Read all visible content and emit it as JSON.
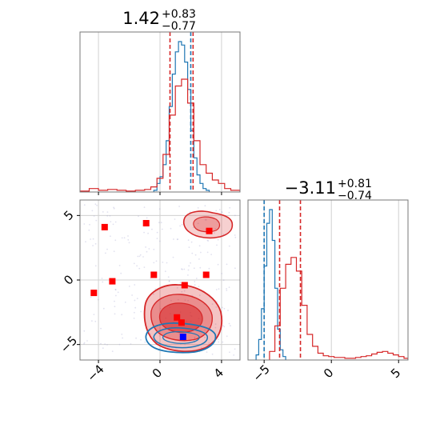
{
  "chart_data": {
    "type": "corner",
    "colors": {
      "blue": "#1f77b4",
      "red": "#d62728",
      "grid": "#d0d0d0"
    },
    "panels": [
      {
        "id": "hist-x",
        "type": "histogram",
        "title": {
          "main": "1.42",
          "sup": "+0.83",
          "sub": "−0.77"
        },
        "xlim": [
          -5.2,
          5.2
        ],
        "grid_x": [
          -4,
          0,
          4
        ],
        "series": [
          {
            "color": "blue",
            "edges": [
              -0.4,
              -0.2,
              0,
              0.2,
              0.4,
              0.6,
              0.8,
              1.0,
              1.2,
              1.4,
              1.6,
              1.8,
              2.0,
              2.2,
              2.4,
              2.6,
              2.8,
              3.0,
              3.2
            ],
            "values": [
              0.01,
              0.05,
              0.09,
              0.16,
              0.3,
              0.5,
              0.69,
              0.82,
              0.88,
              0.86,
              0.76,
              0.6,
              0.36,
              0.2,
              0.1,
              0.05,
              0.02,
              0.01
            ]
          },
          {
            "color": "red",
            "edges": [
              -5.2,
              -4.6,
              -4.0,
              -3.4,
              -2.8,
              -2.2,
              -1.6,
              -1.0,
              -0.6,
              -0.2,
              0.2,
              0.6,
              1.0,
              1.4,
              1.8,
              2.2,
              2.6,
              3.0,
              3.4,
              3.8,
              4.2,
              4.6,
              5.2
            ],
            "values": [
              0.005,
              0.02,
              0.01,
              0.015,
              0.01,
              0.005,
              0.01,
              0.015,
              0.03,
              0.08,
              0.22,
              0.45,
              0.62,
              0.66,
              0.52,
              0.3,
              0.16,
              0.11,
              0.07,
              0.05,
              0.02,
              0.01
            ]
          }
        ],
        "vlines": [
          {
            "x": 0.65,
            "color": "red"
          },
          {
            "x": 2.15,
            "color": "red"
          },
          {
            "x": 2.0,
            "color": "blue"
          }
        ]
      },
      {
        "id": "scatter-xy",
        "type": "2d-density",
        "xlim": [
          -5.2,
          5.2
        ],
        "ylim": [
          -6.2,
          6.2
        ],
        "xticks": [
          -4,
          0,
          4
        ],
        "yticks": [
          -5,
          0,
          5
        ],
        "xtick_labels": [
          "−4",
          "0",
          "4"
        ],
        "ytick_labels": [
          "−5",
          "0",
          "5"
        ],
        "markers": [
          {
            "x": -3.6,
            "y": 4.1,
            "color": "red"
          },
          {
            "x": -0.9,
            "y": 4.4,
            "color": "red"
          },
          {
            "x": 3.2,
            "y": 3.8,
            "color": "red"
          },
          {
            "x": -3.1,
            "y": -0.1,
            "color": "red"
          },
          {
            "x": -0.4,
            "y": 0.4,
            "color": "red"
          },
          {
            "x": 3.0,
            "y": 0.4,
            "color": "red"
          },
          {
            "x": -4.3,
            "y": -1.0,
            "color": "red"
          },
          {
            "x": 1.6,
            "y": -0.4,
            "color": "red"
          },
          {
            "x": 1.1,
            "y": -2.9,
            "color": "red"
          },
          {
            "x": 1.4,
            "y": -3.3,
            "color": "red"
          },
          {
            "x": 1.5,
            "y": -4.4,
            "color": "blue"
          }
        ]
      },
      {
        "id": "hist-y",
        "type": "histogram",
        "title": {
          "main": "−3.11",
          "sup": "+0.81",
          "sub": "−0.74"
        },
        "xlim": [
          -6.2,
          5.7
        ],
        "xticks": [
          -5,
          0,
          5
        ],
        "xtick_labels": [
          "−5",
          "0",
          "5"
        ],
        "series": [
          {
            "color": "blue",
            "edges": [
              -5.6,
              -5.4,
              -5.2,
              -5.0,
              -4.8,
              -4.6,
              -4.4,
              -4.2,
              -4.0,
              -3.8,
              -3.6,
              -3.4
            ],
            "values": [
              0.03,
              0.12,
              0.3,
              0.55,
              0.8,
              0.88,
              0.7,
              0.42,
              0.18,
              0.06,
              0.02
            ]
          },
          {
            "color": "red",
            "edges": [
              -4.6,
              -4.2,
              -3.8,
              -3.4,
              -3.0,
              -2.6,
              -2.2,
              -1.8,
              -1.4,
              -1.0,
              -0.6,
              -0.2,
              0.2,
              0.6,
              1.0,
              1.4,
              1.8,
              2.2,
              2.6,
              3.0,
              3.4,
              3.8,
              4.2,
              4.6,
              5.0,
              5.4,
              5.7
            ],
            "values": [
              0.05,
              0.2,
              0.42,
              0.56,
              0.6,
              0.52,
              0.32,
              0.15,
              0.08,
              0.04,
              0.025,
              0.02,
              0.015,
              0.015,
              0.01,
              0.01,
              0.015,
              0.02,
              0.025,
              0.035,
              0.045,
              0.05,
              0.04,
              0.03,
              0.02,
              0.01
            ]
          }
        ],
        "vlines": [
          {
            "x": -3.85,
            "color": "red"
          },
          {
            "x": -2.3,
            "color": "red"
          },
          {
            "x": -5.0,
            "color": "blue"
          }
        ]
      }
    ]
  }
}
